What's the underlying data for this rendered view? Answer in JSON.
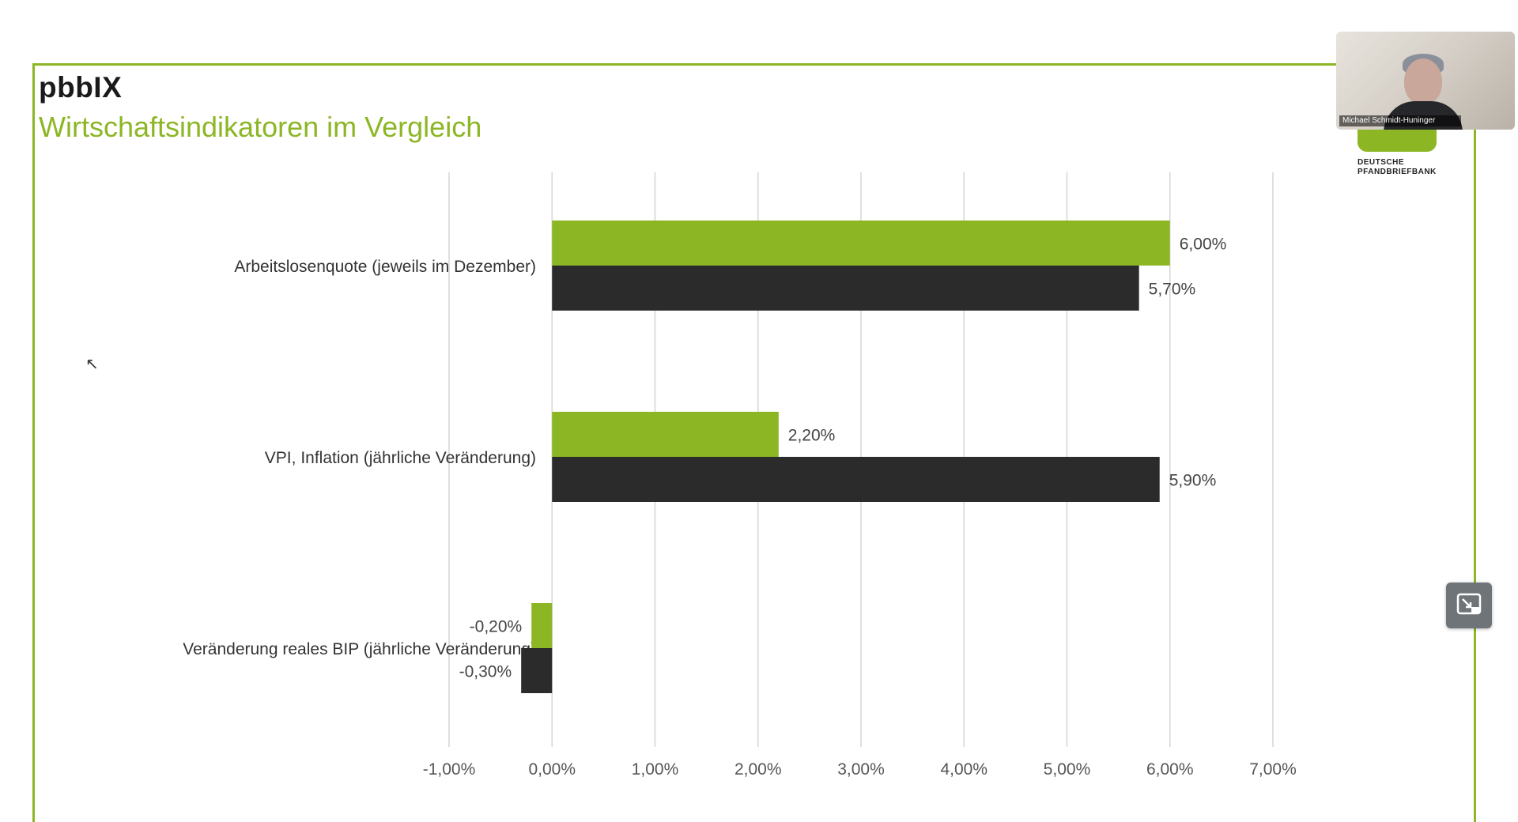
{
  "slide": {
    "brand": "pbbIX",
    "subtitle": "Wirtschaftsindikatoren im Vergleich",
    "logo_text_1": "DEUTSCHE",
    "logo_text_2": "PFANDBRIEFBANK",
    "video_name": "Michael Schmidt-Huninger"
  },
  "colors": {
    "accent": "#8cb624",
    "dark_bar": "#2b2b2b",
    "frame": "#8cb624"
  },
  "icons": {
    "fullscreen": "exit-fullscreen-icon",
    "cursor": "mouse-pointer-icon"
  },
  "chart_data": {
    "type": "bar",
    "orientation": "horizontal",
    "categories": [
      "Arbeitslosenquote (jeweils im Dezember)",
      "VPI, Inflation (jährliche Veränderung)",
      "Veränderung reales BIP (jährliche Veränderung)"
    ],
    "series": [
      {
        "color": "#8cb624",
        "values": [
          6.0,
          2.2,
          -0.2
        ],
        "labels": [
          "6,00%",
          "2,20%",
          "-0,20%"
        ]
      },
      {
        "color": "#2b2b2b",
        "values": [
          5.7,
          5.9,
          -0.3
        ],
        "labels": [
          "5,70%",
          "5,90%",
          "-0,30%"
        ]
      }
    ],
    "xlim": [
      -1.0,
      7.0
    ],
    "xticks": [
      -1,
      0,
      1,
      2,
      3,
      4,
      5,
      6,
      7
    ],
    "xtick_labels": [
      "-1,00%",
      "0,00%",
      "1,00%",
      "2,00%",
      "3,00%",
      "4,00%",
      "5,00%",
      "6,00%",
      "7,00%"
    ],
    "grid": true,
    "title": "",
    "xlabel": "",
    "ylabel": ""
  }
}
